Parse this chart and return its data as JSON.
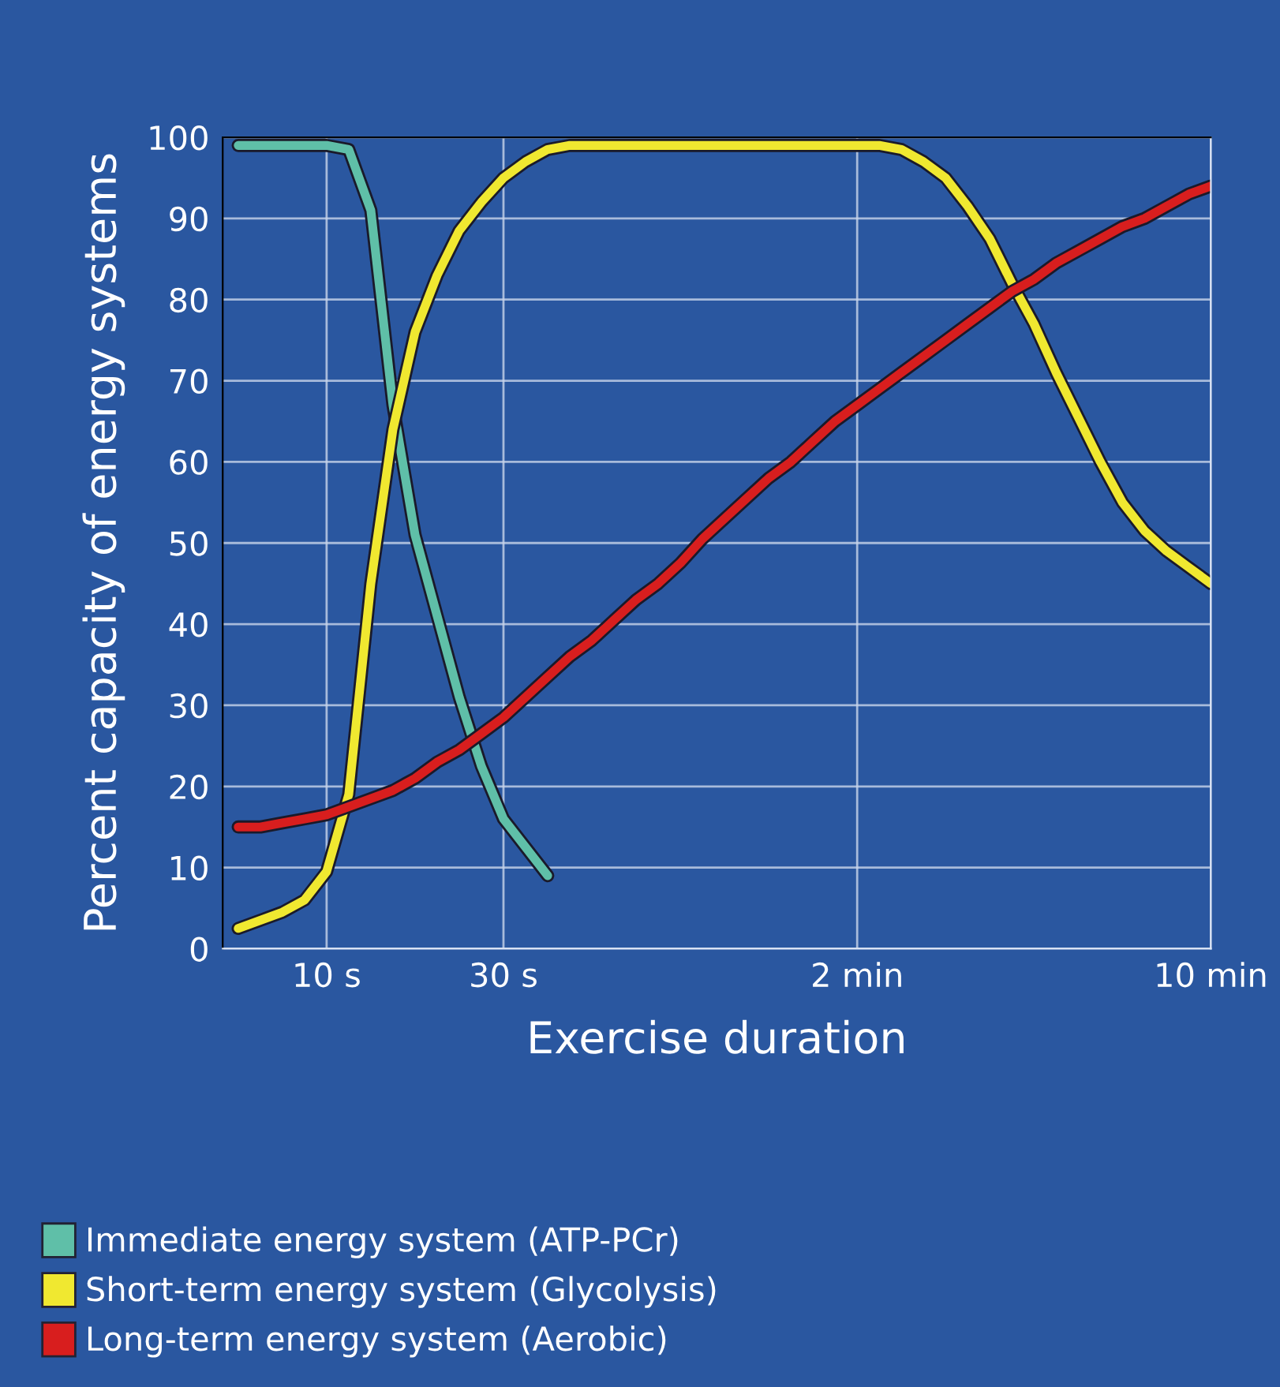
{
  "chart_data": {
    "type": "line",
    "xlabel": "Exercise duration",
    "ylabel": "Percent capacity of energy systems",
    "categories": [
      null,
      null,
      null,
      null,
      "10 s",
      null,
      null,
      null,
      null,
      null,
      null,
      null,
      "30 s",
      null,
      null,
      null,
      null,
      null,
      null,
      null,
      null,
      null,
      null,
      null,
      null,
      null,
      null,
      null,
      "2 min",
      null,
      null,
      null,
      null,
      null,
      null,
      null,
      null,
      null,
      null,
      null,
      null,
      null,
      null,
      null,
      "10 min"
    ],
    "ylim": [
      0,
      100
    ],
    "yticks": [
      0,
      10,
      20,
      30,
      40,
      50,
      60,
      70,
      80,
      90,
      100
    ],
    "grid": true,
    "legend": "bottom",
    "marker": "none",
    "line_style": "solid",
    "series": [
      {
        "name": "Immediate energy system (ATP-PCr)",
        "color": "#5fbfa8",
        "values": [
          99,
          99,
          99,
          99,
          99,
          98.5,
          91,
          67,
          51,
          41,
          31,
          22.5,
          16,
          12.5,
          9,
          null,
          null,
          null,
          null,
          null,
          null,
          null,
          null,
          null,
          null,
          null,
          null,
          null,
          null,
          null,
          null,
          null,
          null,
          null,
          null,
          null,
          null,
          null,
          null,
          null,
          null,
          null,
          null,
          null,
          null
        ]
      },
      {
        "name": "Short-term energy system (Glycolysis)",
        "color": "#f0e830",
        "values": [
          2.5,
          3.5,
          4.5,
          6,
          9.5,
          19,
          45,
          64,
          76,
          83,
          88.5,
          92,
          95,
          97,
          98.5,
          99,
          99,
          99,
          99,
          99,
          99,
          99,
          99,
          99,
          99,
          99,
          99,
          99,
          99,
          99,
          98.5,
          97,
          95,
          91.5,
          87.5,
          82,
          77,
          71,
          65.5,
          60,
          55,
          51.5,
          49,
          47,
          45
        ]
      },
      {
        "name": "Long-term energy system (Aerobic)",
        "color": "#d81e1e",
        "values": [
          15,
          15,
          15.5,
          16,
          16.5,
          17.5,
          18.5,
          19.5,
          21,
          23,
          24.5,
          26.5,
          28.5,
          31,
          33.5,
          36,
          38,
          40.5,
          43,
          45,
          47.5,
          50.5,
          53,
          55.5,
          58,
          60,
          62.5,
          65,
          67,
          69,
          71,
          73,
          75,
          77,
          79,
          81,
          82.5,
          84.5,
          86,
          87.5,
          89,
          90,
          91.5,
          93,
          94
        ]
      }
    ]
  }
}
